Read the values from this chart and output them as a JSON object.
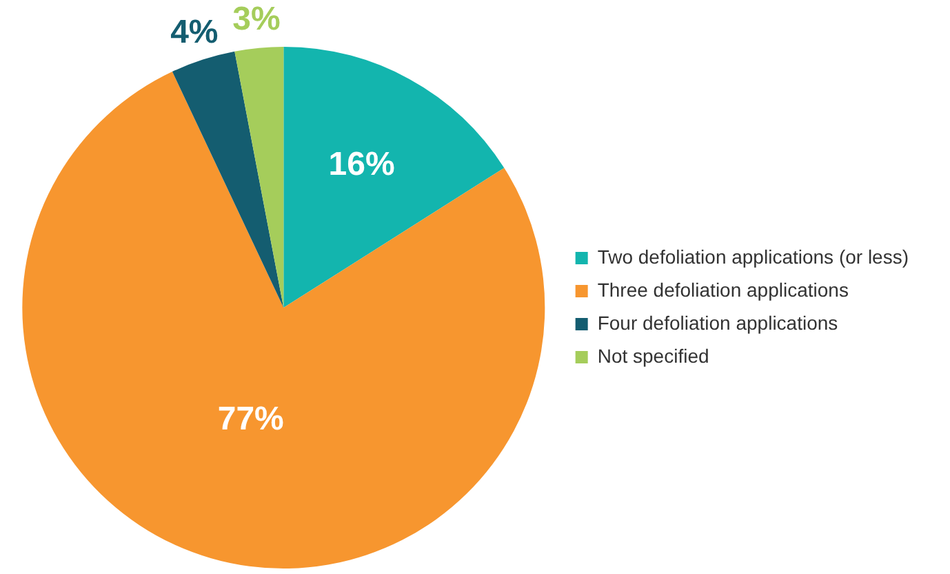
{
  "chart_data": {
    "type": "pie",
    "categories": [
      "Two defoliation applications (or less)",
      "Three defoliation applications",
      "Four defoliation applications",
      "Not specified"
    ],
    "values": [
      16,
      77,
      4,
      3
    ],
    "value_labels": [
      "16%",
      "77%",
      "4%",
      "3%"
    ],
    "colors": [
      "#13b5ae",
      "#f7962f",
      "#145d70",
      "#a5cd5b"
    ],
    "legend": "right"
  }
}
